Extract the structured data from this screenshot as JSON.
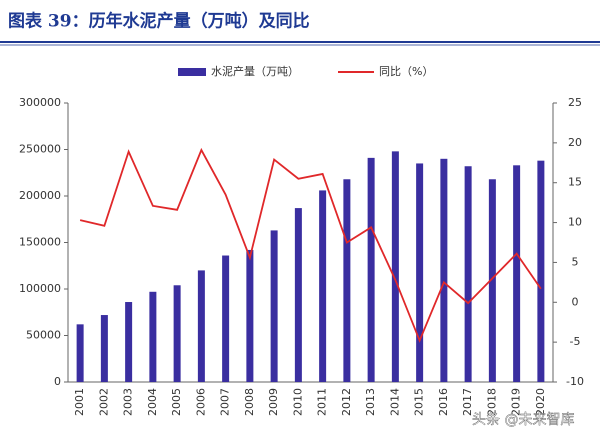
{
  "chart_data": {
    "type": "bar_line",
    "title": "图表 39：历年水泥产量（万吨）及同比",
    "categories": [
      "2001",
      "2002",
      "2003",
      "2004",
      "2005",
      "2006",
      "2007",
      "2008",
      "2009",
      "2010",
      "2011",
      "2012",
      "2013",
      "2014",
      "2015",
      "2016",
      "2017",
      "2018",
      "2019",
      "2020"
    ],
    "series": [
      {
        "name": "水泥产量（万吨）",
        "color": "#3a2ea0",
        "type": "bar",
        "values": [
          62000,
          72000,
          86000,
          97000,
          104000,
          120000,
          136000,
          142000,
          163000,
          187000,
          206000,
          218000,
          241000,
          248000,
          235000,
          240000,
          232000,
          218000,
          233000,
          238000
        ]
      },
      {
        "name": "同比（%）",
        "color": "#e0282a",
        "type": "line",
        "axis": "y2",
        "values": [
          10.3,
          9.6,
          18.9,
          12.1,
          11.6,
          19.1,
          13.5,
          5.6,
          17.9,
          15.5,
          16.1,
          7.5,
          9.4,
          2.8,
          -4.8,
          2.5,
          -0.1,
          3.0,
          6.1,
          1.7
        ]
      }
    ],
    "ylim": [
      0,
      300000
    ],
    "yticks": [
      0,
      50000,
      100000,
      150000,
      200000,
      250000,
      300000
    ],
    "y2lim": [
      -10,
      25
    ],
    "y2ticks": [
      -10,
      -5,
      0,
      5,
      10,
      15,
      20,
      25
    ],
    "watermark": "头条 @未来智库"
  }
}
